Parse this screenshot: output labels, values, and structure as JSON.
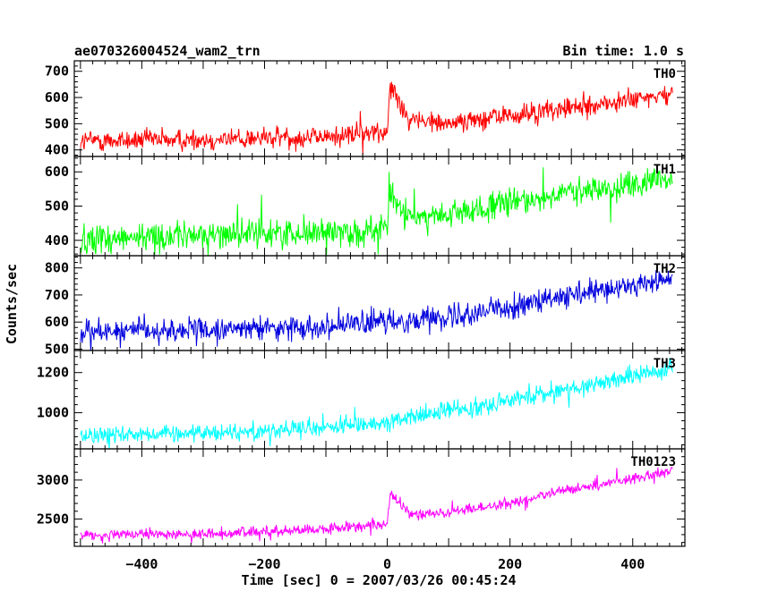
{
  "header": {
    "left": "ae070326004524_wam2_trn",
    "right": "Bin time: 1.0 s"
  },
  "chart_data": {
    "type": "line",
    "title": "ae070326004524_wam2_trn",
    "subtitle": "Bin time: 1.0 s",
    "xlabel": "Time [sec] 0 = 2007/03/26 00:45:24",
    "ylabel": "Counts/sec",
    "xlim": [
      -510,
      485
    ],
    "x_ticks": [
      -400,
      -200,
      0,
      200,
      400
    ],
    "x_tick_labels": [
      "−400",
      "−200",
      "0",
      "200",
      "400"
    ],
    "x_range": [
      -500,
      465
    ],
    "bin_time_s": 1.0,
    "panels": [
      {
        "name": "TH0",
        "color": "#ff0000",
        "ylim": [
          375,
          740
        ],
        "yticks": [
          400,
          500,
          600,
          700
        ],
        "noise": 38,
        "trend_x": [
          -500,
          -300,
          -100,
          -5,
          0,
          5,
          30,
          80,
          200,
          300,
          465
        ],
        "trend_y": [
          435,
          440,
          450,
          470,
          480,
          660,
          530,
          500,
          530,
          560,
          610
        ]
      },
      {
        "name": "TH1",
        "color": "#00ff00",
        "ylim": [
          355,
          645
        ],
        "yticks": [
          400,
          500,
          600
        ],
        "noise": 38,
        "trend_x": [
          -500,
          -300,
          -100,
          -5,
          0,
          5,
          30,
          100,
          200,
          300,
          465
        ],
        "trend_y": [
          405,
          415,
          425,
          430,
          440,
          540,
          470,
          470,
          510,
          540,
          575
        ],
        "spike": {
          "x": 3,
          "y": 600
        }
      },
      {
        "name": "TH2",
        "color": "#0000dd",
        "ylim": [
          495,
          845
        ],
        "yticks": [
          500,
          600,
          700,
          800
        ],
        "noise": 40,
        "trend_x": [
          -500,
          -300,
          -100,
          0,
          100,
          200,
          300,
          465
        ],
        "trend_y": [
          565,
          570,
          585,
          600,
          625,
          655,
          695,
          760
        ]
      },
      {
        "name": "TH3",
        "color": "#00ffff",
        "ylim": [
          820,
          1310
        ],
        "yticks": [
          1000,
          1200
        ],
        "noise": 40,
        "trend_x": [
          -500,
          -300,
          -100,
          0,
          100,
          200,
          300,
          465
        ],
        "trend_y": [
          890,
          900,
          925,
          955,
          1010,
          1060,
          1120,
          1225
        ]
      },
      {
        "name": "TH0123",
        "color": "#ff00ff",
        "ylim": [
          2150,
          3400
        ],
        "yticks": [
          2500,
          3000
        ],
        "noise": 60,
        "trend_x": [
          -500,
          -300,
          -100,
          -5,
          0,
          5,
          40,
          100,
          200,
          300,
          465
        ],
        "trend_y": [
          2290,
          2310,
          2370,
          2430,
          2470,
          2800,
          2560,
          2580,
          2700,
          2880,
          3110
        ]
      }
    ]
  }
}
